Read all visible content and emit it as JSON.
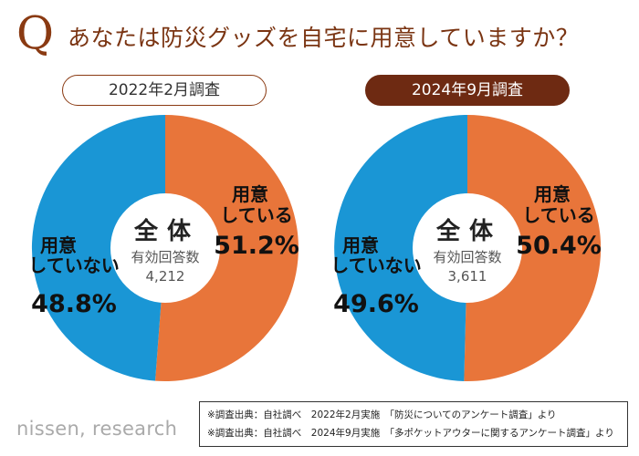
{
  "title": {
    "q_letter": "Q",
    "question": "あなたは防災グッズを自宅に用意していますか？"
  },
  "center": {
    "label": "全体",
    "sub_label": "有効回答数"
  },
  "colors": {
    "prepared": "#E8753A",
    "not_prepared": "#1A96D5",
    "title_brown": "#7A3412",
    "label_dark": "#6E2A12"
  },
  "chart_data": [
    {
      "type": "pie",
      "title": "2022年2月調査",
      "center_label": "全体",
      "center_sub_label": "有効回答数",
      "total_respondents": "4,212",
      "slices": [
        {
          "label": "用意している",
          "label_lines": [
            "用意",
            "している"
          ],
          "value": 51.2,
          "display": "51.2%",
          "color": "#E8753A"
        },
        {
          "label": "用意していない",
          "label_lines": [
            "用意",
            "していない"
          ],
          "value": 48.8,
          "display": "48.8%",
          "color": "#1A96D5"
        }
      ]
    },
    {
      "type": "pie",
      "title": "2024年9月調査",
      "center_label": "全体",
      "center_sub_label": "有効回答数",
      "total_respondents": "3,611",
      "slices": [
        {
          "label": "用意している",
          "label_lines": [
            "用意",
            "している"
          ],
          "value": 50.4,
          "display": "50.4%",
          "color": "#E8753A"
        },
        {
          "label": "用意していない",
          "label_lines": [
            "用意",
            "していない"
          ],
          "value": 49.6,
          "display": "49.6%",
          "color": "#1A96D5"
        }
      ]
    }
  ],
  "footer": {
    "logo": "nissen, research",
    "sources": [
      "※調査出典：自社調べ　2022年2月実施　「防災についてのアンケート調査」より",
      "※調査出典：自社調べ　2024年9月実施　「多ポケットアウターに関するアンケート調査」より"
    ]
  }
}
